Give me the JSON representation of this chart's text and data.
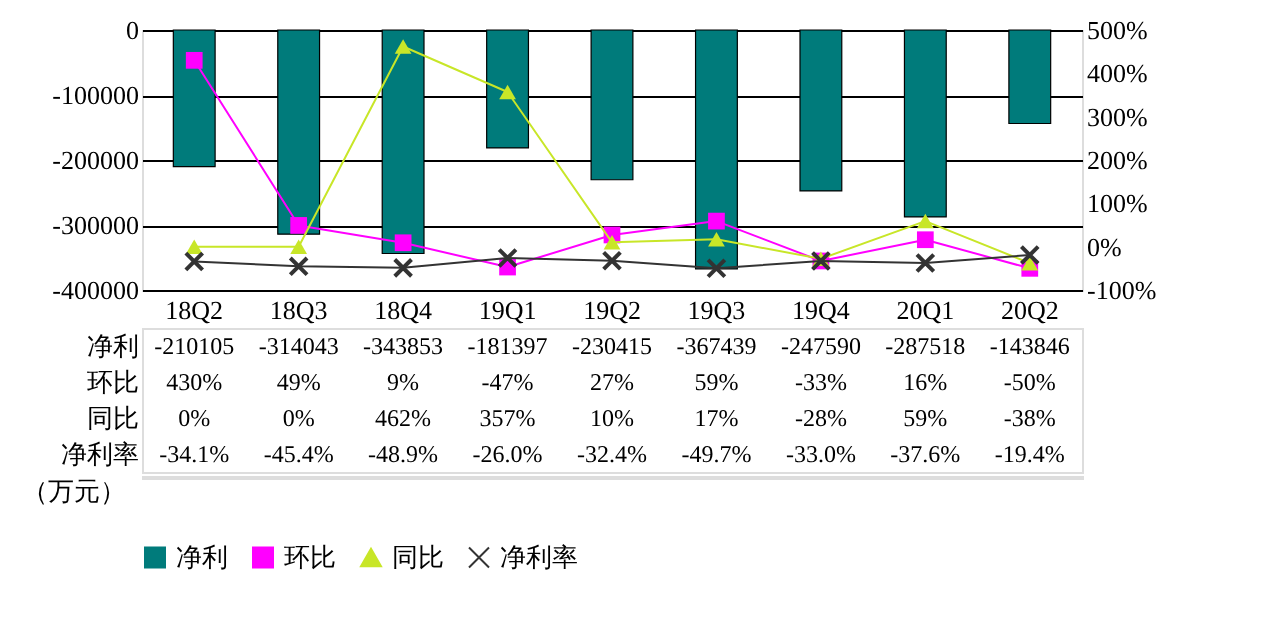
{
  "chart_data": {
    "type": "bar",
    "categories": [
      "18Q2",
      "18Q3",
      "18Q4",
      "19Q1",
      "19Q2",
      "19Q3",
      "19Q4",
      "20Q1",
      "20Q2"
    ],
    "series": [
      {
        "name": "净利",
        "color": "#007b7b",
        "values": [
          -210105,
          -314043,
          -343853,
          -181397,
          -230415,
          -367439,
          -247590,
          -287518,
          -143846
        ],
        "value_labels": [
          "-210105",
          "-314043",
          "-343853",
          "-181397",
          "-230415",
          "-367439",
          "-247590",
          "-287518",
          "-143846"
        ]
      },
      {
        "name": "环比",
        "type": "line",
        "axis": "y2",
        "marker": "square",
        "color": "#ff00ff",
        "values": [
          430,
          49,
          9,
          -47,
          27,
          59,
          -33,
          16,
          -50
        ],
        "value_labels": [
          "430%",
          "49%",
          "9%",
          "-47%",
          "27%",
          "59%",
          "-33%",
          "16%",
          "-50%"
        ]
      },
      {
        "name": "同比",
        "type": "line",
        "axis": "y2",
        "marker": "triangle",
        "color": "#c8e628",
        "values": [
          0,
          0,
          462,
          357,
          10,
          17,
          -28,
          59,
          -38
        ],
        "value_labels": [
          "0%",
          "0%",
          "462%",
          "357%",
          "10%",
          "17%",
          "-28%",
          "59%",
          "-38%"
        ]
      },
      {
        "name": "净利率",
        "type": "line",
        "axis": "y2",
        "marker": "cross",
        "color": "#333333",
        "values": [
          -34.1,
          -45.4,
          -48.9,
          -26.0,
          -32.4,
          -49.7,
          -33.0,
          -37.6,
          -19.4
        ],
        "value_labels": [
          "-34.1%",
          "-45.4%",
          "-48.9%",
          "-26.0%",
          "-32.4%",
          "-49.7%",
          "-33.0%",
          "-37.6%",
          "-19.4%"
        ]
      }
    ],
    "ylim": [
      -400000,
      0
    ],
    "yticks": [
      -400000,
      -300000,
      -200000,
      -100000,
      0
    ],
    "y2lim": [
      -100,
      500
    ],
    "y2ticks": [
      {
        "value": -100,
        "label": "-100%"
      },
      {
        "value": 0,
        "label": "0%"
      },
      {
        "value": 100,
        "label": "100%"
      },
      {
        "value": 200,
        "label": "200%"
      },
      {
        "value": 300,
        "label": "300%"
      },
      {
        "value": 400,
        "label": "400%"
      },
      {
        "value": 500,
        "label": "500%"
      }
    ],
    "grid": "y",
    "legend": "bottom",
    "annotations": [
      "（万元）"
    ]
  }
}
